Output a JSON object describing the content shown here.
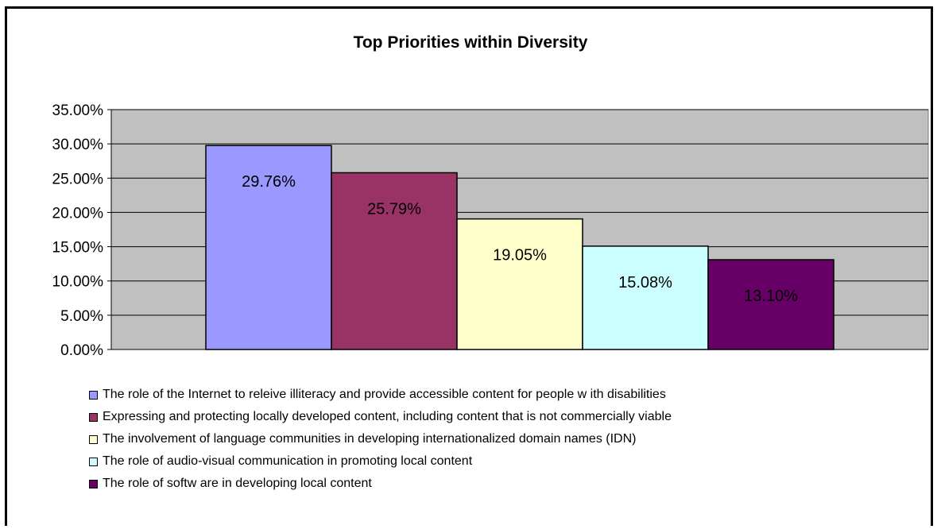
{
  "chart_data": {
    "type": "bar",
    "title": "Top Priorities within Diversity",
    "ylim": [
      0,
      0.35
    ],
    "y_ticks": [
      "0.00%",
      "5.00%",
      "10.00%",
      "15.00%",
      "20.00%",
      "25.00%",
      "30.00%",
      "35.00%"
    ],
    "grid": true,
    "legend_position": "bottom",
    "series": [
      {
        "name": "The role of the Internet to releive illiteracy and provide accessible content for people w ith disabilities",
        "value": 0.2976,
        "label": "29.76%",
        "color": "#9999ff"
      },
      {
        "name": "Expressing and protecting locally developed content, including content that is not commercially viable",
        "value": 0.2579,
        "label": "25.79%",
        "color": "#993366"
      },
      {
        "name": "The involvement of language communities in developing internationalized domain names (IDN)",
        "value": 0.1905,
        "label": "19.05%",
        "color": "#ffffcc"
      },
      {
        "name": "The role of audio-visual communication in promoting local content",
        "value": 0.1508,
        "label": "15.08%",
        "color": "#ccffff"
      },
      {
        "name": "The role of softw are in developing local content",
        "value": 0.131,
        "label": "13.10%",
        "color": "#660066"
      }
    ]
  },
  "colors": {
    "plot_background": "#c0c0c0",
    "gridline": "#000000"
  }
}
